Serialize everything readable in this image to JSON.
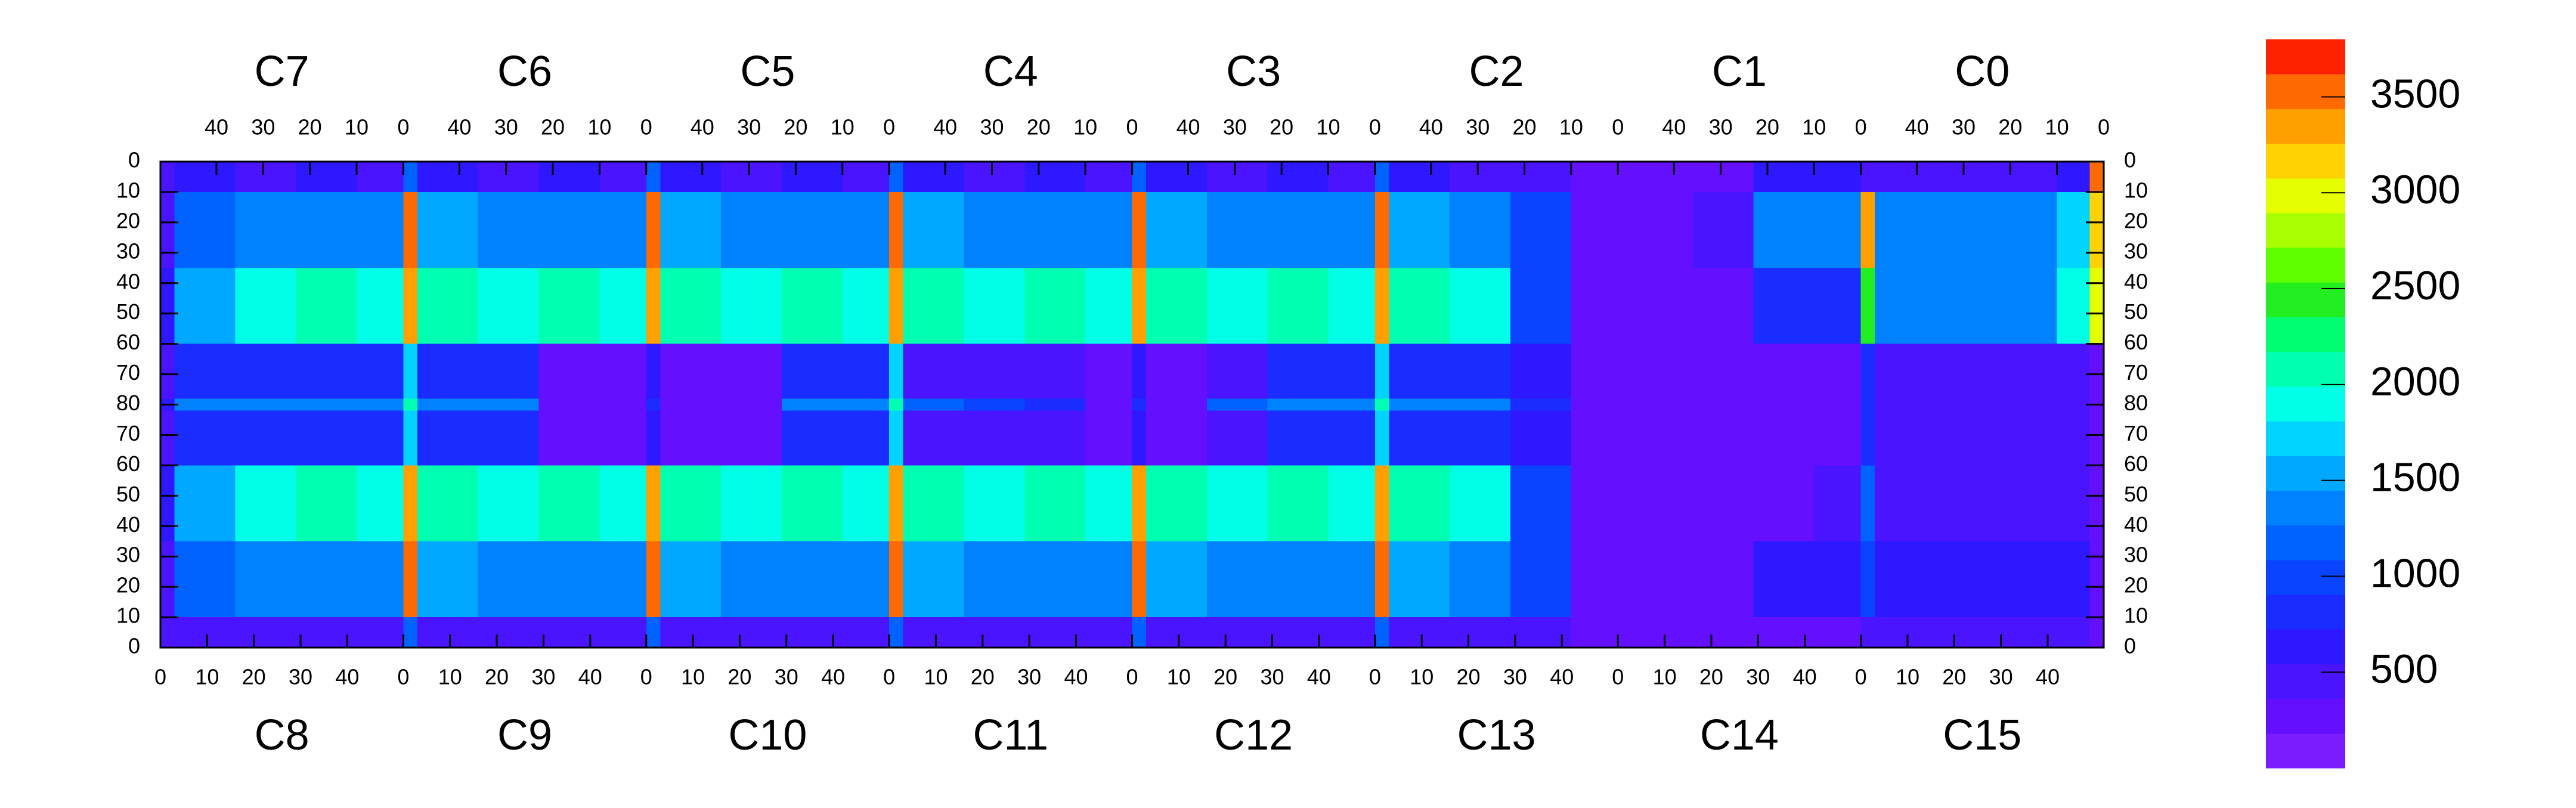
{
  "chart_data": {
    "type": "heatmap",
    "top_labels": [
      "C7",
      "C6",
      "C5",
      "C4",
      "C3",
      "C2",
      "C1",
      "C0"
    ],
    "bottom_labels": [
      "C8",
      "C9",
      "C10",
      "C11",
      "C12",
      "C13",
      "C14",
      "C15"
    ],
    "xlim": [
      0,
      416
    ],
    "ylim": [
      0,
      160
    ],
    "y_reversed": true,
    "xbins": [
      0,
      3,
      16,
      29,
      42,
      52,
      55,
      68,
      81,
      94,
      104,
      107,
      120,
      133,
      146,
      156,
      159,
      172,
      185,
      198,
      208,
      211,
      224,
      237,
      250,
      260,
      263,
      276,
      289,
      302,
      312,
      315,
      328,
      341,
      354,
      364,
      367,
      380,
      393,
      406,
      413,
      416
    ],
    "ybins": [
      0,
      10,
      35,
      60,
      78,
      82,
      100,
      125,
      150,
      160
    ],
    "z": [
      [
        400,
        600,
        500,
        600,
        500,
        1200,
        600,
        500,
        600,
        500,
        1200,
        600,
        500,
        600,
        500,
        1200,
        600,
        500,
        600,
        500,
        1200,
        600,
        500,
        600,
        500,
        1200,
        600,
        500,
        400,
        200,
        300,
        300,
        300,
        600,
        600,
        500,
        400,
        400,
        400,
        600,
        3500
      ],
      [
        500,
        1200,
        1300,
        1400,
        1300,
        3500,
        1500,
        1300,
        1400,
        1300,
        3500,
        1500,
        1300,
        1400,
        1300,
        3500,
        1500,
        1300,
        1400,
        1300,
        3500,
        1500,
        1300,
        1400,
        1300,
        3500,
        1500,
        1400,
        1000,
        200,
        300,
        300,
        500,
        1300,
        1300,
        3300,
        1300,
        1300,
        1300,
        1800,
        3200
      ],
      [
        600,
        1500,
        1900,
        2000,
        1900,
        3400,
        2000,
        1900,
        2000,
        1900,
        3400,
        2000,
        1900,
        2000,
        1900,
        3400,
        2000,
        1900,
        2000,
        1900,
        3400,
        2000,
        1900,
        2000,
        1900,
        3400,
        2000,
        1900,
        1000,
        200,
        300,
        300,
        300,
        900,
        800,
        2500,
        1300,
        1300,
        1300,
        1900,
        3000
      ],
      [
        400,
        900,
        800,
        900,
        800,
        1700,
        900,
        800,
        200,
        200,
        700,
        200,
        200,
        900,
        800,
        1700,
        500,
        400,
        400,
        200,
        600,
        200,
        500,
        900,
        800,
        1700,
        900,
        800,
        700,
        200,
        300,
        300,
        300,
        300,
        300,
        800,
        500,
        500,
        500,
        400,
        300
      ],
      [
        600,
        1400,
        1400,
        1400,
        1400,
        2000,
        1400,
        1400,
        300,
        300,
        900,
        300,
        300,
        1400,
        1400,
        2000,
        1200,
        1000,
        800,
        300,
        800,
        300,
        1200,
        1400,
        1400,
        2000,
        1400,
        1400,
        900,
        300,
        300,
        300,
        300,
        300,
        300,
        800,
        500,
        500,
        500,
        400,
        300
      ],
      [
        400,
        900,
        800,
        900,
        800,
        1700,
        900,
        800,
        200,
        200,
        700,
        200,
        200,
        900,
        800,
        1700,
        500,
        400,
        400,
        200,
        600,
        200,
        500,
        900,
        800,
        1700,
        900,
        800,
        700,
        200,
        300,
        300,
        300,
        300,
        300,
        800,
        500,
        500,
        500,
        400,
        300
      ],
      [
        600,
        1500,
        1900,
        2000,
        1900,
        3400,
        2000,
        1900,
        2000,
        1900,
        3400,
        2000,
        1900,
        2000,
        1900,
        3400,
        2000,
        1900,
        2000,
        1900,
        3400,
        2000,
        1900,
        2000,
        1900,
        3400,
        2000,
        1900,
        1000,
        200,
        300,
        300,
        300,
        300,
        500,
        1200,
        500,
        500,
        500,
        400,
        300
      ],
      [
        500,
        1200,
        1300,
        1400,
        1300,
        3500,
        1500,
        1300,
        1400,
        1300,
        3500,
        1500,
        1300,
        1400,
        1300,
        3500,
        1500,
        1300,
        1400,
        1300,
        3500,
        1500,
        1300,
        1400,
        1300,
        3500,
        1500,
        1400,
        1000,
        200,
        300,
        300,
        300,
        600,
        600,
        1000,
        700,
        700,
        700,
        600,
        300
      ],
      [
        400,
        500,
        500,
        500,
        500,
        1200,
        500,
        500,
        500,
        500,
        1200,
        500,
        500,
        500,
        500,
        1200,
        500,
        500,
        500,
        500,
        1200,
        500,
        500,
        500,
        500,
        1200,
        500,
        500,
        400,
        200,
        300,
        300,
        300,
        300,
        300,
        500,
        400,
        400,
        400,
        400,
        300
      ]
    ],
    "xticks": [
      0,
      10,
      20,
      30,
      40,
      {
        "value": 52,
        "label": "0"
      },
      {
        "value": 62,
        "label": "10"
      },
      {
        "value": 72,
        "label": "20"
      },
      {
        "value": 82,
        "label": "30"
      },
      {
        "value": 92,
        "label": "40"
      },
      {
        "value": 104,
        "label": "0"
      },
      {
        "value": 114,
        "label": "10"
      },
      {
        "value": 124,
        "label": "20"
      },
      {
        "value": 134,
        "label": "30"
      },
      {
        "value": 144,
        "label": "40"
      },
      {
        "value": 156,
        "label": "0"
      },
      {
        "value": 166,
        "label": "10"
      },
      {
        "value": 176,
        "label": "20"
      },
      {
        "value": 186,
        "label": "30"
      },
      {
        "value": 196,
        "label": "40"
      },
      {
        "value": 208,
        "label": "0"
      },
      {
        "value": 218,
        "label": "10"
      },
      {
        "value": 228,
        "label": "20"
      },
      {
        "value": 238,
        "label": "30"
      },
      {
        "value": 248,
        "label": "40"
      },
      {
        "value": 260,
        "label": "0"
      },
      {
        "value": 270,
        "label": "10"
      },
      {
        "value": 280,
        "label": "20"
      },
      {
        "value": 290,
        "label": "30"
      },
      {
        "value": 300,
        "label": "40"
      },
      {
        "value": 312,
        "label": "0"
      },
      {
        "value": 322,
        "label": "10"
      },
      {
        "value": 332,
        "label": "20"
      },
      {
        "value": 342,
        "label": "30"
      },
      {
        "value": 352,
        "label": "40"
      },
      {
        "value": 364,
        "label": "0"
      },
      {
        "value": 374,
        "label": "10"
      },
      {
        "value": 384,
        "label": "20"
      },
      {
        "value": 394,
        "label": "30"
      },
      {
        "value": 404,
        "label": "40"
      }
    ],
    "x2ticks": [
      {
        "value": 12,
        "label": "40"
      },
      {
        "value": 22,
        "label": "30"
      },
      {
        "value": 32,
        "label": "20"
      },
      {
        "value": 42,
        "label": "10"
      },
      {
        "value": 52,
        "label": "0"
      },
      {
        "value": 64,
        "label": "40"
      },
      {
        "value": 74,
        "label": "30"
      },
      {
        "value": 84,
        "label": "20"
      },
      {
        "value": 94,
        "label": "10"
      },
      {
        "value": 104,
        "label": "0"
      },
      {
        "value": 116,
        "label": "40"
      },
      {
        "value": 126,
        "label": "30"
      },
      {
        "value": 136,
        "label": "20"
      },
      {
        "value": 146,
        "label": "10"
      },
      {
        "value": 156,
        "label": "0"
      },
      {
        "value": 168,
        "label": "40"
      },
      {
        "value": 178,
        "label": "30"
      },
      {
        "value": 188,
        "label": "20"
      },
      {
        "value": 198,
        "label": "10"
      },
      {
        "value": 208,
        "label": "0"
      },
      {
        "value": 220,
        "label": "40"
      },
      {
        "value": 230,
        "label": "30"
      },
      {
        "value": 240,
        "label": "20"
      },
      {
        "value": 250,
        "label": "10"
      },
      {
        "value": 260,
        "label": "0"
      },
      {
        "value": 272,
        "label": "40"
      },
      {
        "value": 282,
        "label": "30"
      },
      {
        "value": 292,
        "label": "20"
      },
      {
        "value": 302,
        "label": "10"
      },
      {
        "value": 312,
        "label": "0"
      },
      {
        "value": 324,
        "label": "40"
      },
      {
        "value": 334,
        "label": "30"
      },
      {
        "value": 344,
        "label": "20"
      },
      {
        "value": 354,
        "label": "10"
      },
      {
        "value": 364,
        "label": "0"
      },
      {
        "value": 376,
        "label": "40"
      },
      {
        "value": 386,
        "label": "30"
      },
      {
        "value": 396,
        "label": "20"
      },
      {
        "value": 406,
        "label": "10"
      },
      {
        "value": 416,
        "label": "0"
      }
    ],
    "yticks": [
      0,
      10,
      20,
      30,
      40,
      50,
      60,
      70,
      80,
      {
        "value": 90,
        "label": "70"
      },
      {
        "value": 100,
        "label": "60"
      },
      {
        "value": 110,
        "label": "50"
      },
      {
        "value": 120,
        "label": "40"
      },
      {
        "value": 130,
        "label": "30"
      },
      {
        "value": 140,
        "label": "20"
      },
      {
        "value": 150,
        "label": "10"
      },
      {
        "value": 160,
        "label": "0"
      }
    ],
    "zlim": [
      0,
      3800
    ],
    "zticks": [
      500,
      1000,
      1500,
      2000,
      2500,
      3000,
      3500
    ],
    "palette": [
      "#7a1cff",
      "#6410ff",
      "#4a14ff",
      "#2e18ff",
      "#1a2cff",
      "#0a44ff",
      "#0062ff",
      "#0082ff",
      "#00a8ff",
      "#00d4ff",
      "#00ffe6",
      "#00ffb0",
      "#00ff70",
      "#22ee22",
      "#60ff00",
      "#a8ff00",
      "#e6ff00",
      "#ffd200",
      "#ffa000",
      "#ff6a00",
      "#ff2200"
    ]
  }
}
